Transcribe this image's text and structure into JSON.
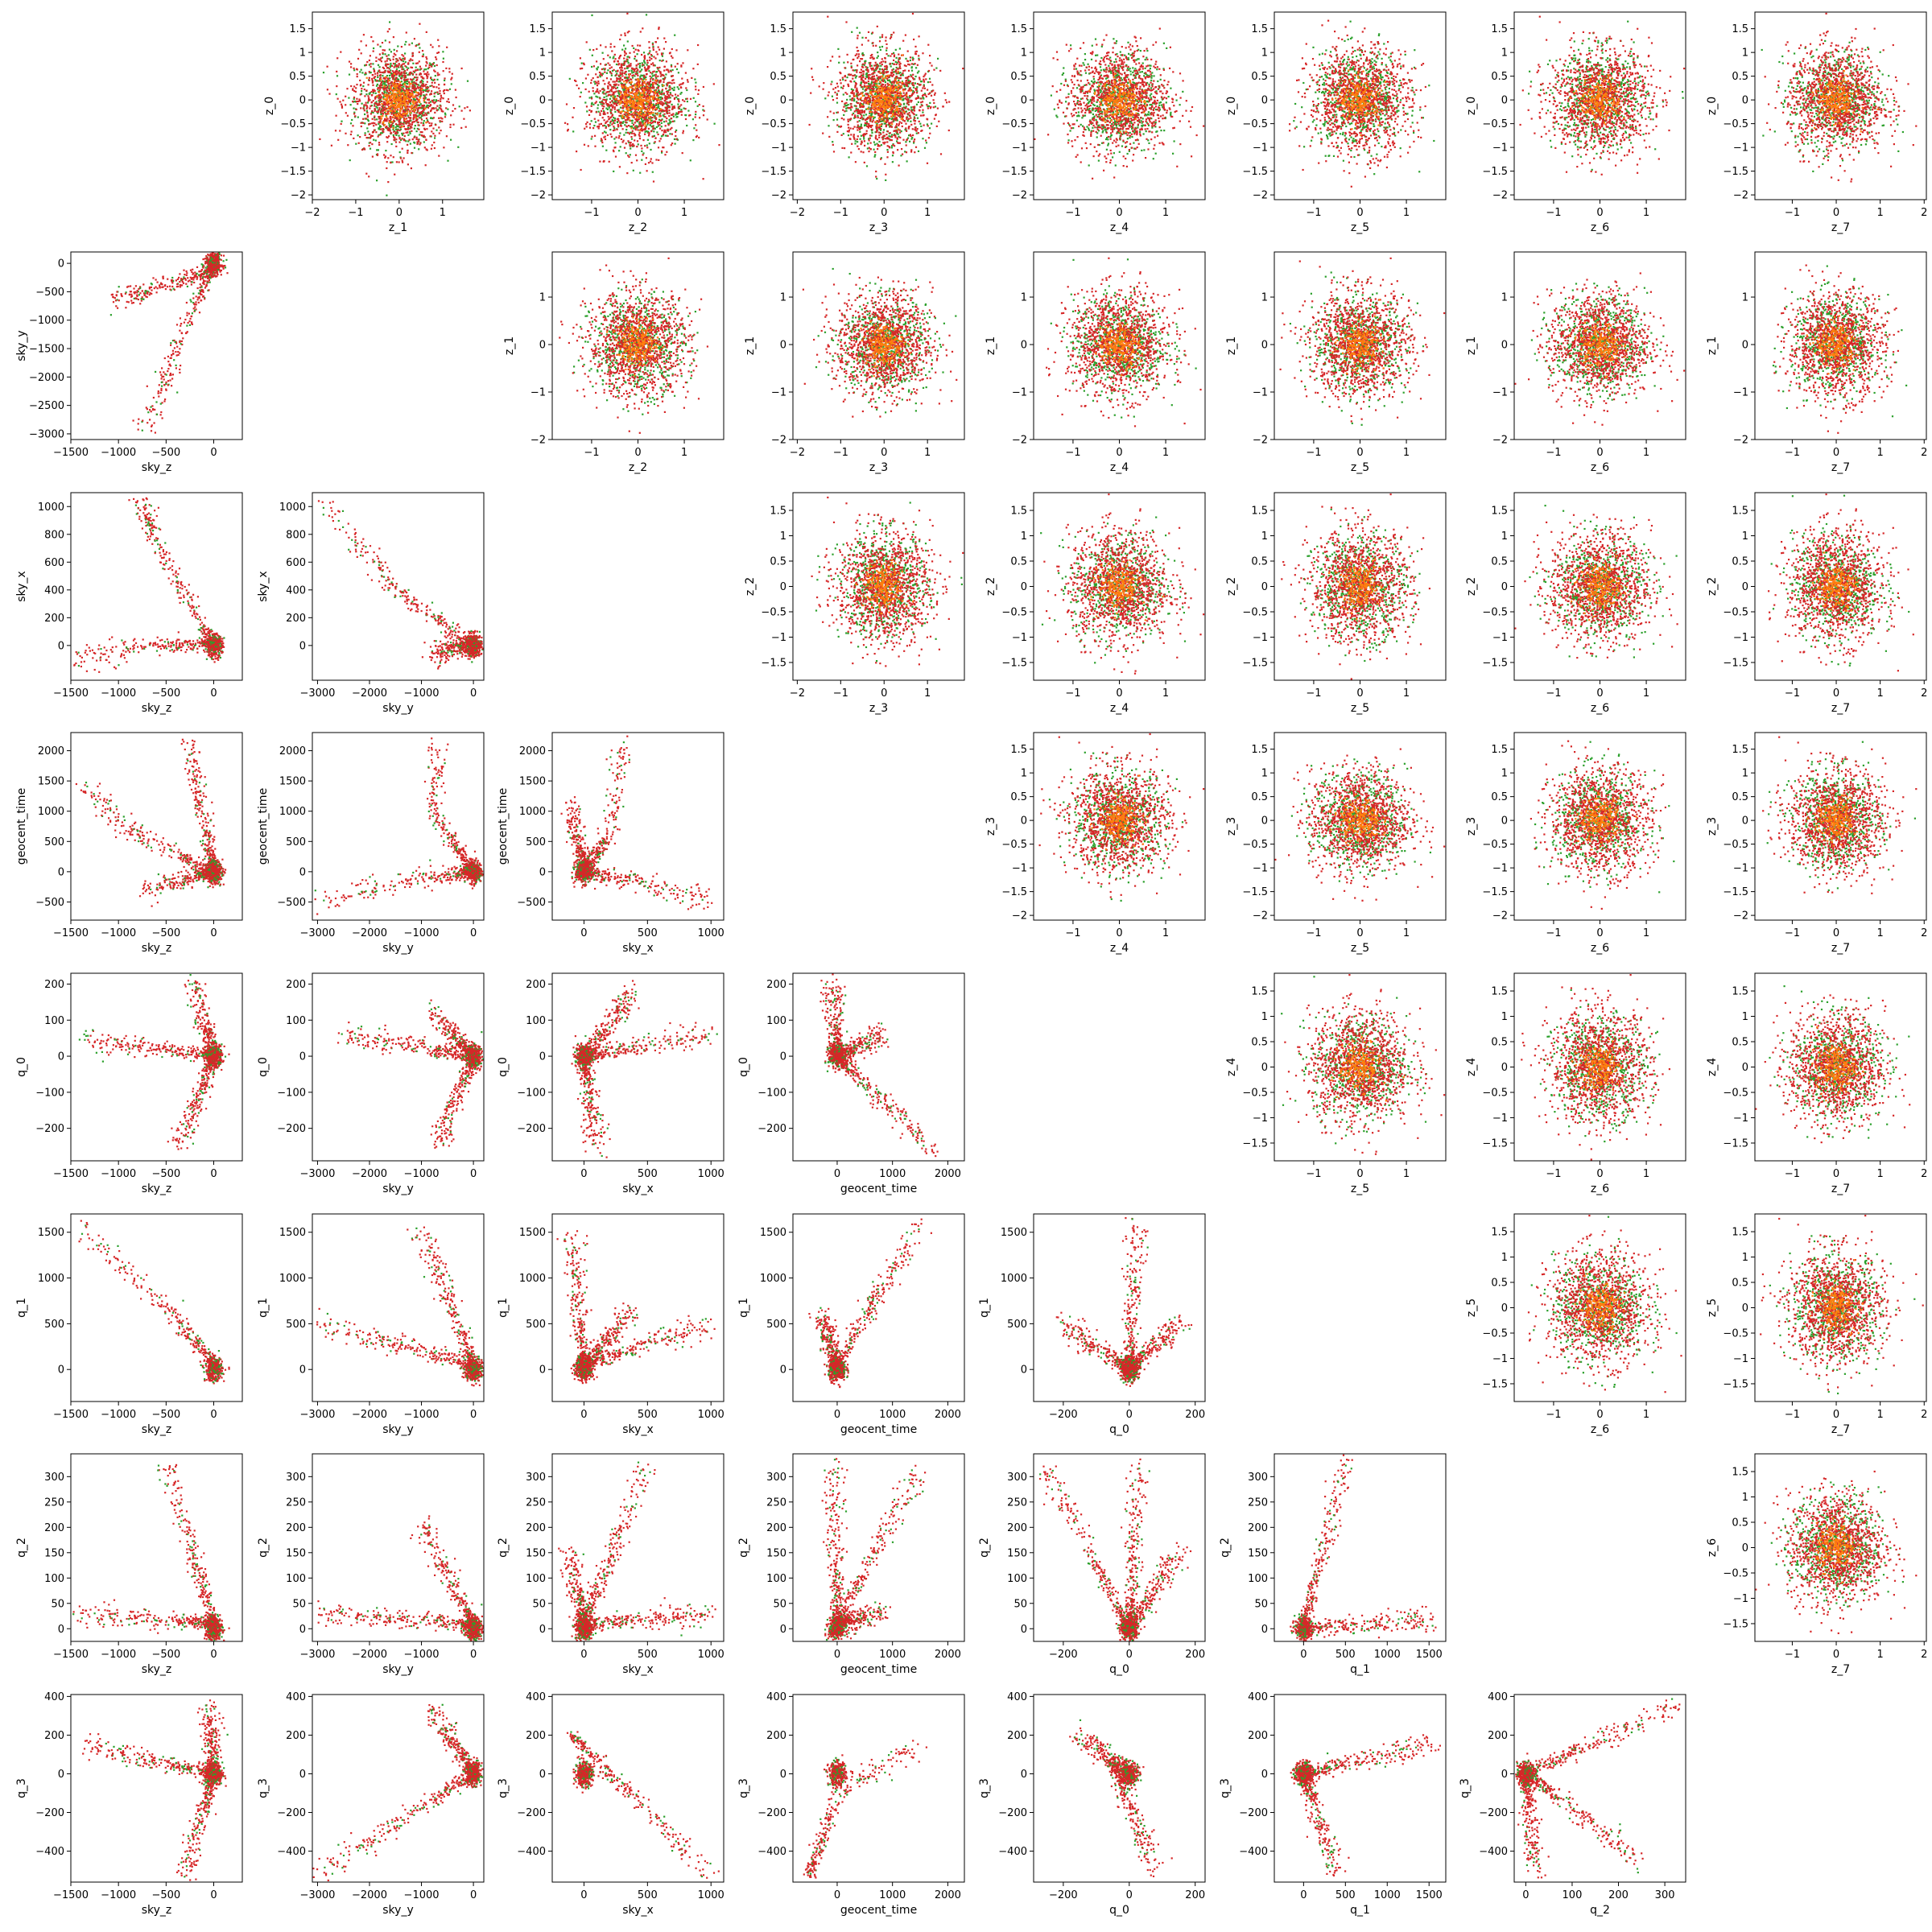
{
  "colors": {
    "sample_a": "#2ca02c",
    "sample_b": "#d62728",
    "overlap": "#ff7f0e"
  },
  "chart_data": {
    "type": "scatter",
    "layout": "corner-pair-grid",
    "upper_triangle_variables": [
      "z_0",
      "z_1",
      "z_2",
      "z_3",
      "z_4",
      "z_5",
      "z_6",
      "z_7"
    ],
    "lower_triangle_variables": [
      "sky_z",
      "sky_y",
      "sky_x",
      "geocent_time",
      "q_0",
      "q_1",
      "q_2",
      "q_3"
    ],
    "ranges": {
      "z_0": [
        -2.1,
        1.85
      ],
      "z_1": [
        -2.0,
        1.95
      ],
      "z_2": [
        -1.85,
        1.85
      ],
      "z_3": [
        -2.1,
        1.85
      ],
      "z_4": [
        -1.85,
        1.85
      ],
      "z_5": [
        -1.85,
        1.85
      ],
      "z_6": [
        -1.85,
        1.85
      ],
      "z_7": [
        -1.85,
        2.05
      ],
      "sky_z": [
        -1500,
        300
      ],
      "sky_y": [
        -3100,
        200
      ],
      "sky_x": [
        -250,
        1100
      ],
      "geocent_time": [
        -800,
        2300
      ],
      "q_0": [
        -290,
        230
      ],
      "q_1": [
        -350,
        1700
      ],
      "q_2": [
        -25,
        345
      ],
      "q_3": [
        -560,
        410
      ]
    },
    "ticks": {
      "z_0": [
        -2.0,
        -1.5,
        -1.0,
        -0.5,
        0.0,
        0.5,
        1.0,
        1.5
      ],
      "z_1": [
        -2,
        -1,
        0,
        1
      ],
      "z_2": [
        -1.5,
        -1.0,
        -0.5,
        0.0,
        0.5,
        1.0,
        1.5
      ],
      "z_3": [
        -2.0,
        -1.5,
        -1.0,
        -0.5,
        0.0,
        0.5,
        1.0,
        1.5
      ],
      "z_4": [
        -1.5,
        -1.0,
        -0.5,
        0.0,
        0.5,
        1.0,
        1.5
      ],
      "z_5": [
        -1.5,
        -1.0,
        -0.5,
        0.0,
        0.5,
        1.0,
        1.5
      ],
      "z_6": [
        -1.5,
        -1.0,
        -0.5,
        0.0,
        0.5,
        1.0,
        1.5
      ],
      "z_7": [
        -1,
        0,
        1,
        2
      ],
      "sky_z": [
        -1500,
        -1000,
        -500,
        0
      ],
      "sky_y": [
        -3000,
        -2500,
        -2000,
        -1500,
        -1000,
        -500,
        0
      ],
      "sky_x": [
        0,
        200,
        400,
        600,
        800,
        1000
      ],
      "geocent_time": [
        -500,
        0,
        500,
        1000,
        1500,
        2000
      ],
      "q_0": [
        -200,
        -100,
        0,
        100,
        200
      ],
      "q_1": [
        0,
        500,
        1000,
        1500
      ],
      "q_2": [
        0,
        50,
        100,
        150,
        200,
        250,
        300
      ],
      "q_3": [
        -400,
        -200,
        0,
        200,
        400
      ]
    },
    "xticks_upper": {
      "z_1": [
        -2,
        -1,
        0,
        1
      ],
      "z_2": [
        -1,
        0,
        1
      ],
      "z_3": [
        -2,
        -1,
        0,
        1
      ],
      "z_4": [
        -1,
        0,
        1
      ],
      "z_5": [
        -1,
        0,
        1
      ],
      "z_6": [
        -1,
        0,
        1
      ],
      "z_7": [
        -1,
        0,
        1,
        2
      ]
    },
    "xticks_lower": {
      "sky_z": [
        -1500,
        -1000,
        -500,
        0
      ],
      "sky_y": [
        -3000,
        -2000,
        -1000,
        0
      ],
      "sky_x": [
        0,
        500,
        1000
      ],
      "geocent_time": [
        0,
        1000,
        2000
      ],
      "q_0": [
        -200,
        0,
        200
      ],
      "q_1": [
        0,
        500,
        1000,
        1500
      ],
      "q_2": [
        0,
        100,
        200,
        300
      ]
    },
    "yticks_lower": {
      "sky_y": [
        -3000,
        -2500,
        -2000,
        -1500,
        -1000,
        -500,
        0
      ],
      "sky_x": [
        0,
        200,
        400,
        600,
        800,
        1000
      ],
      "geocent_time": [
        -500,
        0,
        500,
        1000,
        1500,
        2000
      ],
      "q_0": [
        -200,
        -100,
        0,
        100,
        200
      ],
      "q_1": [
        0,
        500,
        1000,
        1500
      ],
      "q_2": [
        0,
        50,
        100,
        150,
        200,
        250,
        300
      ],
      "q_3": [
        -400,
        -200,
        0,
        200,
        400
      ]
    },
    "upper_panel_distribution": "isotropic cloud centred at (0, 0), standard deviation about 0.5, spread to about ±1.8",
    "series": [
      {
        "name": "",
        "color": "#d62728"
      },
      {
        "name": "",
        "color": "#2ca02c"
      },
      {
        "name": "",
        "color": "#ff7f0e"
      }
    ],
    "lower_panel_trend_arms": {
      "sky_y|sky_z": [
        [
          [
            0,
            0
          ],
          [
            -400,
            -1500
          ],
          [
            -700,
            -2900
          ]
        ],
        [
          [
            0,
            -100
          ],
          [
            -700,
            -500
          ],
          [
            -1050,
            -600
          ]
        ]
      ],
      "sky_x|sky_z": [
        [
          [
            0,
            0
          ],
          [
            -650,
            800
          ],
          [
            -750,
            1050
          ]
        ],
        [
          [
            0,
            20
          ],
          [
            -700,
            -10
          ],
          [
            -1450,
            -100
          ]
        ]
      ],
      "sky_x|sky_y": [
        [
          [
            0,
            0
          ],
          [
            -1500,
            400
          ],
          [
            -2900,
            1050
          ]
        ],
        [
          [
            0,
            0
          ],
          [
            -800,
            -50
          ]
        ]
      ],
      "geocent_time|sky_z": [
        [
          [
            0,
            0
          ],
          [
            -700,
            -300
          ]
        ],
        [
          [
            0,
            0
          ],
          [
            -800,
            600
          ],
          [
            -1450,
            1450
          ]
        ],
        [
          [
            0,
            0
          ],
          [
            -250,
            2100
          ]
        ]
      ],
      "geocent_time|sky_y": [
        [
          [
            0,
            0
          ],
          [
            -1000,
            -100
          ],
          [
            -3000,
            -500
          ]
        ],
        [
          [
            0,
            0
          ],
          [
            -800,
            1000
          ],
          [
            -650,
            2100
          ]
        ]
      ],
      "geocent_time|sky_x": [
        [
          [
            0,
            0
          ],
          [
            -100,
            1100
          ]
        ],
        [
          [
            0,
            0
          ],
          [
            400,
            -150
          ],
          [
            1000,
            -500
          ]
        ],
        [
          [
            0,
            0
          ],
          [
            200,
            600
          ],
          [
            300,
            2100
          ]
        ]
      ],
      "q_0|sky_z": [
        [
          [
            0,
            0
          ],
          [
            -1350,
            50
          ]
        ],
        [
          [
            0,
            0
          ],
          [
            -200,
            200
          ]
        ],
        [
          [
            0,
            0
          ],
          [
            -350,
            -250
          ]
        ]
      ],
      "q_0|sky_y": [
        [
          [
            0,
            0
          ],
          [
            -2500,
            60
          ]
        ],
        [
          [
            0,
            0
          ],
          [
            -700,
            -250
          ]
        ],
        [
          [
            0,
            0
          ],
          [
            -800,
            120
          ]
        ]
      ],
      "q_0|sky_x": [
        [
          [
            0,
            0
          ],
          [
            1000,
            60
          ]
        ],
        [
          [
            0,
            0
          ],
          [
            400,
            180
          ]
        ],
        [
          [
            0,
            0
          ],
          [
            100,
            -250
          ]
        ]
      ],
      "q_0|geocent_time": [
        [
          [
            0,
            0
          ],
          [
            800,
            60
          ]
        ],
        [
          [
            0,
            0
          ],
          [
            -100,
            200
          ]
        ],
        [
          [
            0,
            0
          ],
          [
            1700,
            -250
          ]
        ]
      ],
      "q_1|sky_z": [
        [
          [
            0,
            50
          ],
          [
            -500,
            700
          ],
          [
            -1450,
            1600
          ]
        ]
      ],
      "q_1|sky_y": [
        [
          [
            0,
            50
          ],
          [
            -1000,
            1500
          ]
        ],
        [
          [
            0,
            50
          ],
          [
            -3000,
            500
          ]
        ]
      ],
      "q_1|sky_x": [
        [
          [
            0,
            50
          ],
          [
            -100,
            1500
          ]
        ],
        [
          [
            0,
            50
          ],
          [
            1000,
            500
          ]
        ],
        [
          [
            0,
            50
          ],
          [
            400,
            650
          ]
        ]
      ],
      "q_1|geocent_time": [
        [
          [
            0,
            50
          ],
          [
            1500,
            1600
          ]
        ],
        [
          [
            0,
            50
          ],
          [
            -300,
            600
          ]
        ]
      ],
      "q_1|q_0": [
        [
          [
            0,
            0
          ],
          [
            20,
            1600
          ]
        ],
        [
          [
            0,
            0
          ],
          [
            -200,
            500
          ]
        ],
        [
          [
            0,
            0
          ],
          [
            150,
            500
          ]
        ]
      ],
      "q_2|sky_z": [
        [
          [
            0,
            10
          ],
          [
            -1450,
            30
          ]
        ],
        [
          [
            0,
            10
          ],
          [
            -500,
            320
          ]
        ]
      ],
      "q_2|sky_y": [
        [
          [
            0,
            10
          ],
          [
            -3000,
            30
          ]
        ],
        [
          [
            0,
            10
          ],
          [
            -1000,
            200
          ]
        ]
      ],
      "q_2|sky_x": [
        [
          [
            0,
            10
          ],
          [
            1000,
            30
          ]
        ],
        [
          [
            0,
            10
          ],
          [
            500,
            320
          ]
        ],
        [
          [
            0,
            10
          ],
          [
            -100,
            150
          ]
        ]
      ],
      "q_2|geocent_time": [
        [
          [
            0,
            10
          ],
          [
            1500,
            320
          ]
        ],
        [
          [
            0,
            10
          ],
          [
            -50,
            320
          ]
        ],
        [
          [
            0,
            10
          ],
          [
            800,
            30
          ]
        ]
      ],
      "q_2|q_0": [
        [
          [
            0,
            0
          ],
          [
            30,
            320
          ]
        ],
        [
          [
            0,
            0
          ],
          [
            -250,
            320
          ]
        ],
        [
          [
            0,
            0
          ],
          [
            150,
            150
          ]
        ]
      ],
      "q_2|q_1": [
        [
          [
            0,
            0
          ],
          [
            500,
            330
          ]
        ],
        [
          [
            0,
            0
          ],
          [
            1500,
            20
          ]
        ]
      ],
      "q_3|sky_z": [
        [
          [
            0,
            0
          ],
          [
            -300,
            -500
          ]
        ],
        [
          [
            0,
            0
          ],
          [
            -1400,
            150
          ]
        ],
        [
          [
            0,
            0
          ],
          [
            -50,
            350
          ]
        ]
      ],
      "q_3|sky_y": [
        [
          [
            0,
            0
          ],
          [
            -3000,
            -520
          ]
        ],
        [
          [
            0,
            0
          ],
          [
            -800,
            350
          ]
        ]
      ],
      "q_3|sky_x": [
        [
          [
            -100,
            200
          ],
          [
            1000,
            -520
          ]
        ]
      ],
      "q_3|geocent_time": [
        [
          [
            -500,
            -520
          ],
          [
            0,
            -100
          ],
          [
            1500,
            150
          ]
        ]
      ],
      "q_3|q_0": [
        [
          [
            -50,
            50
          ],
          [
            80,
            -500
          ]
        ],
        [
          [
            0,
            0
          ],
          [
            -150,
            200
          ]
        ]
      ],
      "q_3|q_1": [
        [
          [
            0,
            0
          ],
          [
            400,
            -520
          ]
        ],
        [
          [
            0,
            0
          ],
          [
            1500,
            150
          ]
        ]
      ],
      "q_3|q_2": [
        [
          [
            0,
            0
          ],
          [
            250,
            -450
          ]
        ],
        [
          [
            0,
            0
          ],
          [
            320,
            350
          ]
        ],
        [
          [
            0,
            0
          ],
          [
            20,
            -520
          ]
        ]
      ]
    }
  }
}
